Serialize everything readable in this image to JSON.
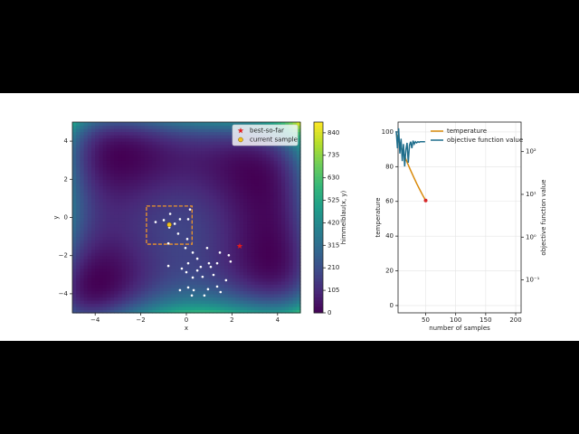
{
  "chart_data": [
    {
      "type": "contour",
      "xlabel": "x",
      "ylabel": "y",
      "xlim": [
        -5,
        5
      ],
      "ylim": [
        -5,
        5
      ],
      "xticks": [
        {
          "value": -4,
          "label": "−4"
        },
        {
          "value": -2,
          "label": "−2"
        },
        0,
        2,
        4
      ],
      "yticks": [
        {
          "value": -4,
          "label": "−4"
        },
        {
          "value": -2,
          "label": "−2"
        },
        0,
        2,
        4
      ],
      "colormap": "viridis",
      "colorbar": {
        "label": "himmelblau(x, y)",
        "lim": [
          0,
          890
        ],
        "ticks": [
          0,
          105,
          210,
          315,
          420,
          525,
          630,
          735,
          840
        ]
      },
      "samples": {
        "color": "#ffffff",
        "x": [
          -1.35,
          -0.99,
          -0.71,
          -0.75,
          -0.51,
          -0.28,
          0.08,
          0.16,
          -0.36,
          0.04,
          -0.79,
          -0.04,
          0.91,
          1.47,
          1.86,
          0.28,
          0.48,
          0.08,
          0.99,
          -0.79,
          -0.2,
          0,
          0.63,
          1.07,
          0.48,
          1.19,
          1.74,
          0.71,
          0.28,
          1.35,
          1.94,
          0.08,
          -0.28,
          0.32,
          0.79,
          1.5,
          0.24,
          1.35,
          0.95
        ],
        "y": [
          -0.24,
          -0.14,
          0.19,
          -0.52,
          -0.33,
          -0.09,
          -0.09,
          0.42,
          -0.85,
          -1.13,
          -1.36,
          -1.6,
          -1.6,
          -1.84,
          -1.98,
          -1.84,
          -2.16,
          -2.4,
          -2.4,
          -2.54,
          -2.68,
          -2.87,
          -2.59,
          -2.59,
          -2.78,
          -3.01,
          -3.29,
          -3.11,
          -3.15,
          -2.4,
          -2.31,
          -3.67,
          -3.81,
          -3.81,
          -4.09,
          -3.91,
          -4.09,
          -3.62,
          -3.76
        ]
      },
      "best": {
        "name": "best-so-far",
        "x": 2.34,
        "y": -1.5,
        "color": "#e31a1c"
      },
      "current": {
        "name": "current sample",
        "x": -0.75,
        "y": -0.38,
        "color": "#f2c21b"
      },
      "search_box": {
        "xlim": [
          -1.75,
          0.25
        ],
        "ylim": [
          -1.4,
          0.6
        ],
        "color": "#f0962a"
      },
      "legend": "upper right"
    },
    {
      "type": "line",
      "xlabel": "number of samples",
      "ylabel": "temperature",
      "y2label": "objective function value",
      "xlim": [
        4,
        209
      ],
      "xticks": [
        50,
        100,
        150,
        200
      ],
      "ylim": [
        -4.2,
        105.7
      ],
      "yticks": [
        0,
        20,
        40,
        60,
        80,
        100
      ],
      "y2log": true,
      "y2lim": [
        0.017,
        490
      ],
      "y2ticks": [
        {
          "value": 0.1,
          "label": "10⁻¹"
        },
        {
          "value": 1,
          "label": "10⁰"
        },
        {
          "value": 10,
          "label": "10¹"
        },
        {
          "value": 100,
          "label": "10²"
        }
      ],
      "grid": true,
      "legend": "upper right",
      "series": [
        {
          "name": "temperature",
          "color": "#d98a0b",
          "x": [
            1,
            5,
            10,
            15,
            20,
            25,
            30,
            35,
            40,
            45,
            50
          ],
          "values": [
            99,
            95.1,
            90.4,
            86.0,
            81.8,
            77.8,
            74.0,
            70.3,
            66.9,
            63.6,
            60.5
          ],
          "end_color": "#d62728"
        },
        {
          "name": "objective function value",
          "color": "#1f6e8c",
          "axis": "y2",
          "x": [
            1,
            3,
            5,
            7,
            9,
            11,
            13,
            15,
            17,
            19,
            21,
            23,
            25,
            27,
            29,
            31,
            33,
            35,
            37,
            39,
            41,
            43,
            45,
            47,
            49
          ],
          "values": [
            300,
            120,
            350,
            90,
            200,
            60,
            150,
            45,
            110,
            160,
            55,
            140,
            170,
            120,
            180,
            150,
            170,
            160,
            170,
            165,
            170,
            170,
            170,
            170,
            170
          ]
        }
      ]
    }
  ]
}
